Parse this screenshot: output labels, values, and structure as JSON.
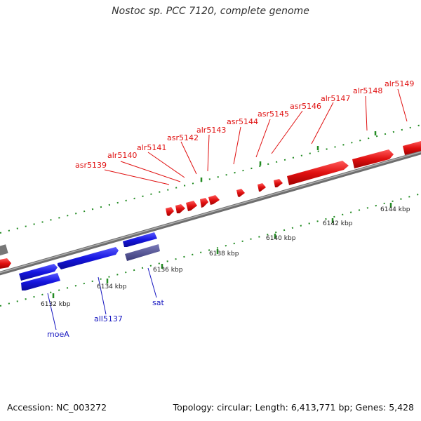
{
  "title": "Nostoc sp. PCC 7120, complete genome",
  "footer": {
    "accession": "Accession: NC_003272",
    "summary": "Topology: circular; Length: 6,413,771 bp; Genes: 5,428"
  },
  "colors": {
    "forward_gene": "#e01010",
    "reverse_gene": "#1515e0",
    "rna_gene": "#4a4a8c",
    "backbone": "#8a8a8a",
    "tick": "#228b22",
    "forward_label": "#e01010",
    "reverse_label": "#1515c0"
  },
  "forward_labels": [
    "asr5139",
    "alr5140",
    "alr5141",
    "asr5142",
    "alr5143",
    "asr5144",
    "asr5145",
    "asr5146",
    "alr5147",
    "alr5148",
    "alr5149"
  ],
  "reverse_labels": [
    "moeA",
    "all5137",
    "sat"
  ],
  "kbp_labels": [
    "6132 kbp",
    "6134 kbp",
    "6136 kbp",
    "6138 kbp",
    "6140 kbp",
    "6142 kbp",
    "6144 kbp"
  ]
}
